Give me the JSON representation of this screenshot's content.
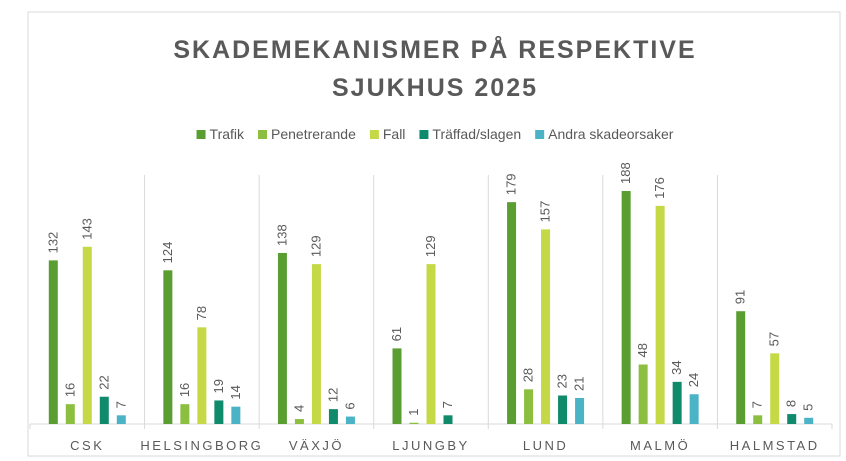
{
  "chart_data": {
    "type": "bar",
    "title": [
      "SKADEMEKANISMER PÅ RESPEKTIVE",
      "SJUKHUS 2025"
    ],
    "categories": [
      "CSK",
      "HELSINGBORG",
      "VÄXJÖ",
      "LJUNGBY",
      "LUND",
      "MALMÖ",
      "HALMSTAD"
    ],
    "series": [
      {
        "name": "Trafik",
        "color": "#5a9e32",
        "values": [
          132,
          124,
          138,
          61,
          179,
          188,
          91
        ]
      },
      {
        "name": "Penetrerande",
        "color": "#8cbf3f",
        "values": [
          16,
          16,
          4,
          1,
          28,
          48,
          7
        ]
      },
      {
        "name": "Fall",
        "color": "#c5d845",
        "values": [
          143,
          78,
          129,
          129,
          157,
          176,
          57
        ]
      },
      {
        "name": "Träffad/slagen",
        "color": "#0f8a6a",
        "values": [
          22,
          19,
          12,
          7,
          23,
          34,
          8
        ]
      },
      {
        "name": "Andra skadeorsaker",
        "color": "#4bb3c6",
        "values": [
          7,
          14,
          6,
          null,
          21,
          24,
          5
        ]
      }
    ],
    "legend": "top"
  }
}
